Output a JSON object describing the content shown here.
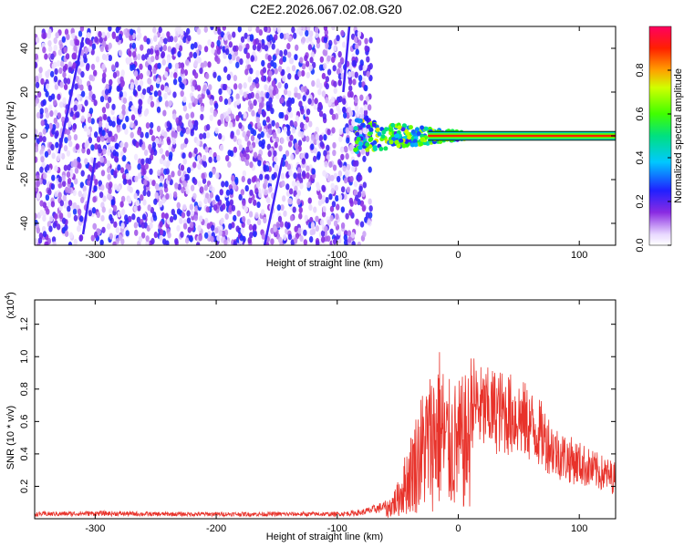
{
  "title": "C2E2.2026.067.02.08.G20",
  "colorbar": {
    "label": "Normalized spectral amplitude",
    "ticks": [
      "0.0",
      "0.2",
      "0.4",
      "0.6",
      "0.8"
    ]
  },
  "chart_data": [
    {
      "type": "heatmap",
      "xlabel": "Height of straight line (km)",
      "ylabel": "Frequency (Hz)",
      "xlim": [
        -350,
        130
      ],
      "ylim": [
        -50,
        50
      ],
      "xticks": [
        "-300",
        "-200",
        "-100",
        "0",
        "100"
      ],
      "yticks": [
        "-40",
        "-20",
        "0",
        "20",
        "40"
      ],
      "colormap": "rainbow",
      "clim": [
        0,
        1
      ],
      "regions": [
        {
          "x_from": -350,
          "x_to": -72,
          "description": "noisy low-amplitude speckle across all frequencies",
          "amplitude": 0.1
        },
        {
          "x_from": -85,
          "x_to": 5,
          "description": "signal energy near 0 Hz",
          "amplitude": 0.5
        },
        {
          "x_from": 0,
          "x_to": 130,
          "description": "narrow carrier line at 0 Hz",
          "amplitude": 0.9
        }
      ]
    },
    {
      "type": "line",
      "xlabel": "Height of straight line (km)",
      "ylabel": "SNR (10 * v/v)",
      "y_scale_label": "(x10^4)",
      "xlim": [
        -350,
        130
      ],
      "ylim": [
        0,
        1.35
      ],
      "xticks": [
        "-300",
        "-200",
        "-100",
        "0",
        "100"
      ],
      "yticks": [
        "0.2",
        "0.4",
        "0.6",
        "0.8",
        "1.0",
        "1.2"
      ],
      "color": "#e8322a",
      "series": [
        {
          "x": [
            -350,
            -300,
            -250,
            -200,
            -150,
            -100,
            -80,
            -60,
            -50,
            -40,
            -30,
            -20,
            -15,
            -10,
            0,
            10,
            20,
            30,
            40,
            50,
            60,
            70,
            80,
            90,
            100,
            110,
            120,
            130
          ],
          "values": [
            0.03,
            0.035,
            0.03,
            0.03,
            0.03,
            0.03,
            0.04,
            0.08,
            0.2,
            0.45,
            0.7,
            0.85,
            0.95,
            0.75,
            0.75,
            0.8,
            0.72,
            0.72,
            0.7,
            0.68,
            0.62,
            0.55,
            0.45,
            0.4,
            0.37,
            0.33,
            0.3,
            0.27
          ]
        }
      ]
    }
  ]
}
